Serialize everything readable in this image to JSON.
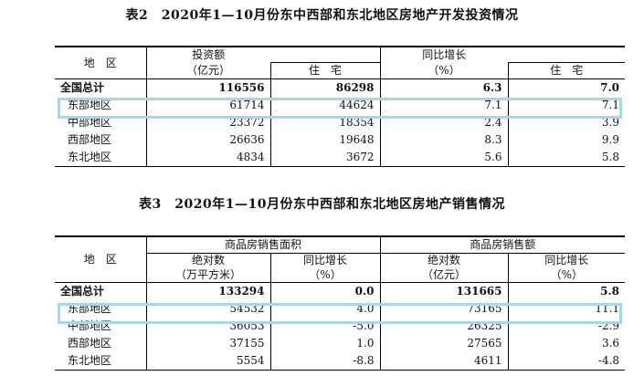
{
  "table2": {
    "title": "表2　2020年1—10月份东中西部和东北地区房地产开发投资情况",
    "headers": {
      "region": "地　区",
      "investment": "投资额",
      "investment_unit": "（亿元）",
      "residential": "住　宅",
      "yoy": "同比增长",
      "yoy_unit": "（%）",
      "yoy_residential": "住　宅"
    },
    "rows": [
      {
        "region": "全国总计",
        "investment": "116556",
        "residential": "86298",
        "yoy": "6.3",
        "yoy_residential": "7.0"
      },
      {
        "region": "东部地区",
        "investment": "61714",
        "residential": "44624",
        "yoy": "7.1",
        "yoy_residential": "7.1"
      },
      {
        "region": "中部地区",
        "investment": "23372",
        "residential": "18354",
        "yoy": "2.4",
        "yoy_residential": "3.9"
      },
      {
        "region": "西部地区",
        "investment": "26636",
        "residential": "19648",
        "yoy": "8.3",
        "yoy_residential": "9.9"
      },
      {
        "region": "东北地区",
        "investment": "4834",
        "residential": "3672",
        "yoy": "5.6",
        "yoy_residential": "5.8"
      }
    ]
  },
  "table3": {
    "title": "表3　2020年1—10月份东中西部和东北地区房地产销售情况",
    "headers": {
      "region": "地　区",
      "area_group": "商品房销售面积",
      "sales_group": "商品房销售额",
      "area_abs": "绝对数",
      "area_abs_unit": "（万平方米）",
      "area_yoy": "同比增长",
      "area_yoy_unit": "（%）",
      "sales_abs": "绝对数",
      "sales_abs_unit": "（亿元）",
      "sales_yoy": "同比增长",
      "sales_yoy_unit": "（%）"
    },
    "rows": [
      {
        "region": "全国总计",
        "area": "133294",
        "area_yoy": "0.0",
        "sales": "131665",
        "sales_yoy": "5.8"
      },
      {
        "region": "东部地区",
        "area": "54532",
        "area_yoy": "4.0",
        "sales": "73165",
        "sales_yoy": "11.1"
      },
      {
        "region": "中部地区",
        "area": "36053",
        "area_yoy": "-5.0",
        "sales": "26325",
        "sales_yoy": "-2.9"
      },
      {
        "region": "西部地区",
        "area": "37155",
        "area_yoy": "1.0",
        "sales": "27565",
        "sales_yoy": "3.6"
      },
      {
        "region": "东北地区",
        "area": "5554",
        "area_yoy": "-8.8",
        "sales": "4611",
        "sales_yoy": "-4.8"
      }
    ]
  },
  "highlight_color": "#a7d9e4"
}
